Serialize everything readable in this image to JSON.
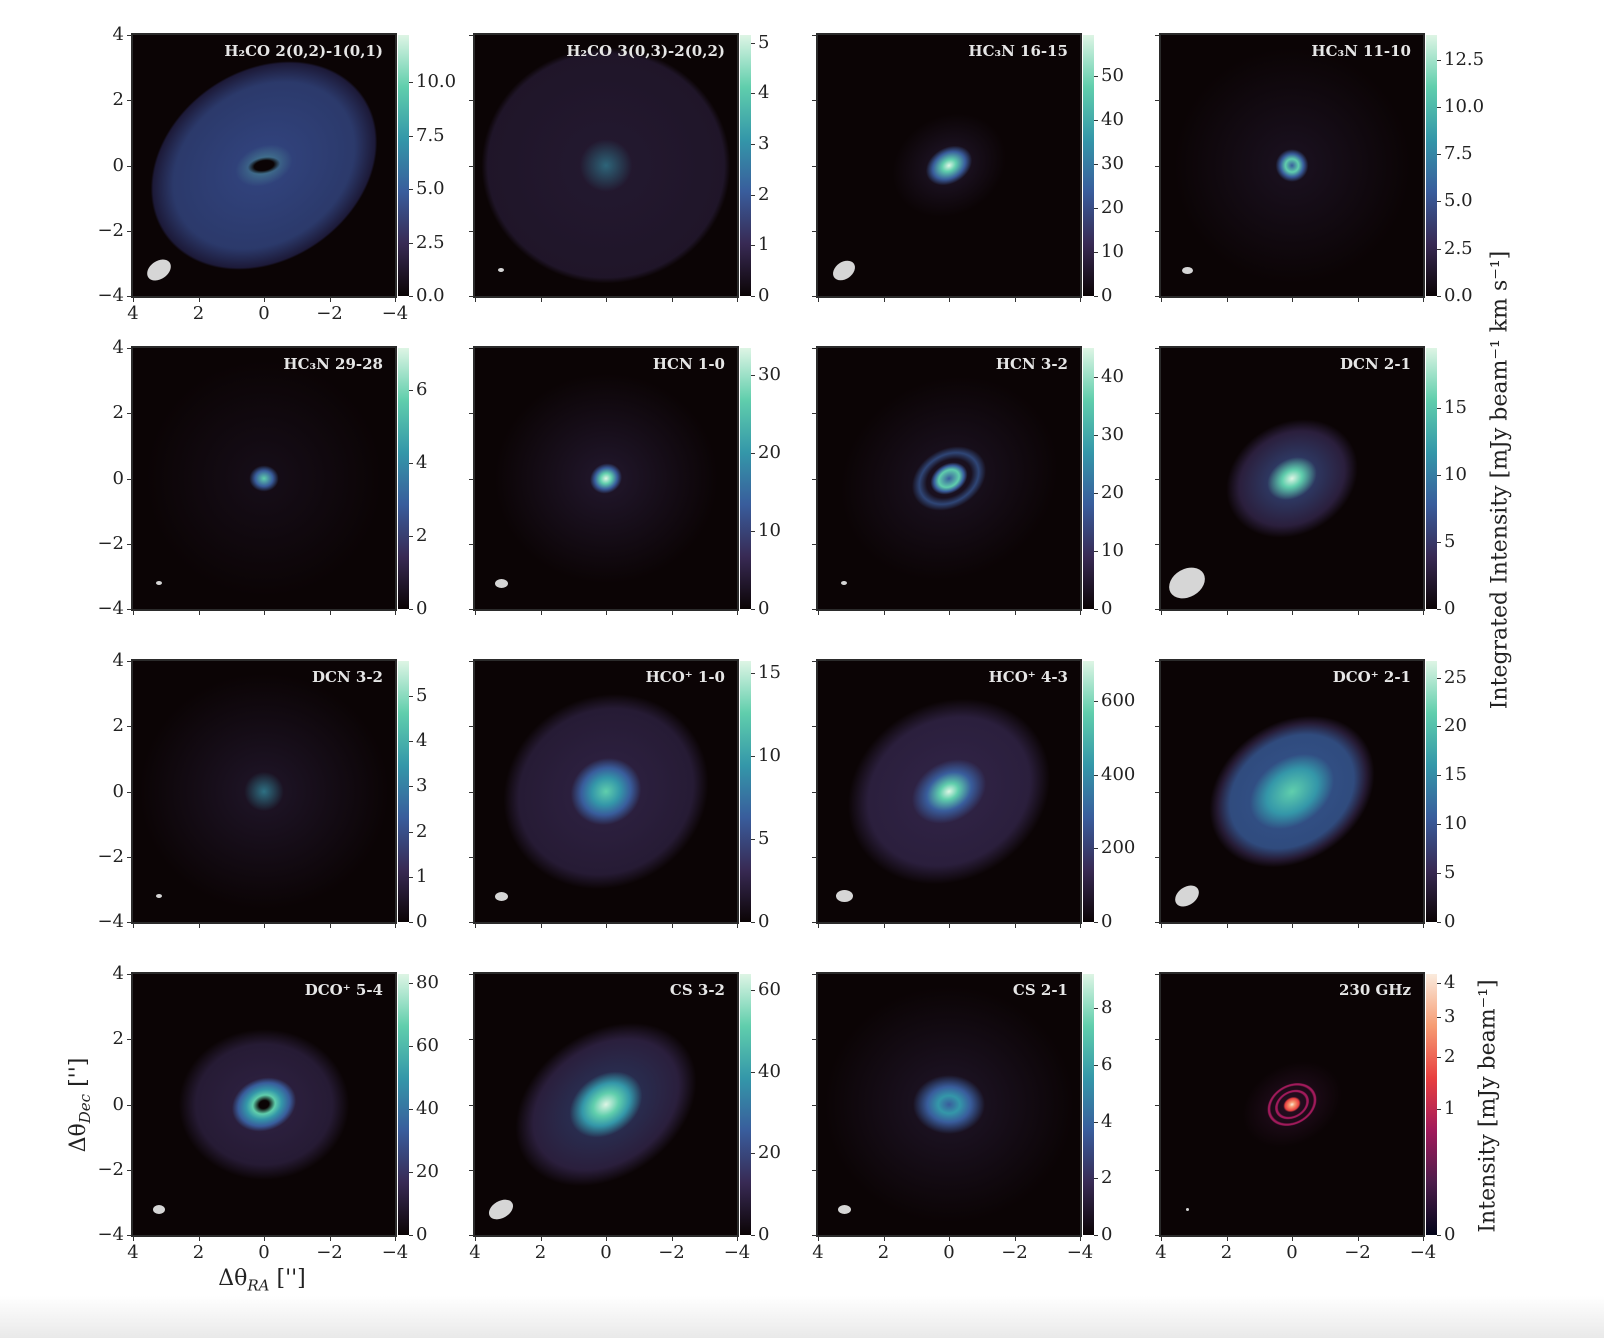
{
  "figure": {
    "xlabel": "Δθ_RA ['']",
    "xlabel_main": "Δθ",
    "xlabel_sub": "RA",
    "xlabel_unit": " ['']",
    "ylabel_main": "Δθ",
    "ylabel_sub": "Dec",
    "ylabel_unit": " ['']",
    "colorbar_label_lines": "Integrated Intensity [mJy beam⁻¹ km s⁻¹]",
    "colorbar_label_continuum": "Intensity [mJy beam⁻¹]",
    "colormap_lines": "mako",
    "colormap_continuum": "rocket",
    "colors": {
      "mako": [
        "#0b0405",
        "#382a54",
        "#395d9c",
        "#3497a9",
        "#60ceac",
        "#def5e5"
      ],
      "rocket": [
        "#03051a",
        "#4c1d4b",
        "#a11a5b",
        "#e83f3f",
        "#f69c73",
        "#faebdd"
      ]
    }
  },
  "chart_data": [
    {
      "type": "heatmap",
      "title": "H₂CO 2(0,2)-1(0,1)",
      "xlim": [
        4,
        -4
      ],
      "ylim": [
        -4,
        4
      ],
      "xticks": [
        "4",
        "2",
        "0",
        "−2",
        "−4"
      ],
      "yticks": [
        "4",
        "2",
        "0",
        "−2",
        "−4"
      ],
      "cbar_range": [
        0,
        12.2
      ],
      "cbar_ticks": [
        0,
        2.5,
        5,
        7.5,
        10
      ],
      "cbar_tick_labels": [
        "0.0",
        "2.5",
        "5.0",
        "7.5",
        "10.0"
      ]
    },
    {
      "type": "heatmap",
      "title": "H₂CO 3(0,3)-2(0,2)",
      "xlim": [
        4,
        -4
      ],
      "ylim": [
        -4,
        4
      ],
      "cbar_range": [
        0,
        5.15
      ],
      "cbar_ticks": [
        0,
        1,
        2,
        3,
        4,
        5
      ],
      "cbar_tick_labels": [
        "0",
        "1",
        "2",
        "3",
        "4",
        "5"
      ]
    },
    {
      "type": "heatmap",
      "title": "HC₃N 16-15",
      "xlim": [
        4,
        -4
      ],
      "ylim": [
        -4,
        4
      ],
      "cbar_range": [
        0,
        59.3
      ],
      "cbar_ticks": [
        0,
        10,
        20,
        30,
        40,
        50
      ],
      "cbar_tick_labels": [
        "0",
        "10",
        "20",
        "30",
        "40",
        "50"
      ]
    },
    {
      "type": "heatmap",
      "title": "HC₃N 11-10",
      "xlim": [
        4,
        -4
      ],
      "ylim": [
        -4,
        4
      ],
      "cbar_range": [
        0,
        13.8
      ],
      "cbar_ticks": [
        0,
        2.5,
        5,
        7.5,
        10,
        12.5
      ],
      "cbar_tick_labels": [
        "0.0",
        "2.5",
        "5.0",
        "7.5",
        "10.0",
        "12.5"
      ]
    },
    {
      "type": "heatmap",
      "title": "HC₃N 29-28",
      "xlim": [
        4,
        -4
      ],
      "ylim": [
        -4,
        4
      ],
      "yticks": [
        "4",
        "2",
        "0",
        "−2",
        "−4"
      ],
      "cbar_range": [
        0,
        7.15
      ],
      "cbar_ticks": [
        0,
        2,
        4,
        6
      ],
      "cbar_tick_labels": [
        "0",
        "2",
        "4",
        "6"
      ]
    },
    {
      "type": "heatmap",
      "title": "HCN 1-0",
      "xlim": [
        4,
        -4
      ],
      "ylim": [
        -4,
        4
      ],
      "cbar_range": [
        0,
        33.5
      ],
      "cbar_ticks": [
        0,
        10,
        20,
        30
      ],
      "cbar_tick_labels": [
        "0",
        "10",
        "20",
        "30"
      ]
    },
    {
      "type": "heatmap",
      "title": "HCN 3-2",
      "xlim": [
        4,
        -4
      ],
      "ylim": [
        -4,
        4
      ],
      "cbar_range": [
        0,
        45
      ],
      "cbar_ticks": [
        0,
        10,
        20,
        30,
        40
      ],
      "cbar_tick_labels": [
        "0",
        "10",
        "20",
        "30",
        "40"
      ]
    },
    {
      "type": "heatmap",
      "title": "DCN 2-1",
      "xlim": [
        4,
        -4
      ],
      "ylim": [
        -4,
        4
      ],
      "cbar_range": [
        0,
        19.5
      ],
      "cbar_ticks": [
        0,
        5,
        10,
        15
      ],
      "cbar_tick_labels": [
        "0",
        "5",
        "10",
        "15"
      ]
    },
    {
      "type": "heatmap",
      "title": "DCN 3-2",
      "xlim": [
        4,
        -4
      ],
      "ylim": [
        -4,
        4
      ],
      "yticks": [
        "4",
        "2",
        "0",
        "−2",
        "−4"
      ],
      "cbar_range": [
        0,
        5.77
      ],
      "cbar_ticks": [
        0,
        1,
        2,
        3,
        4,
        5
      ],
      "cbar_tick_labels": [
        "0",
        "1",
        "2",
        "3",
        "4",
        "5"
      ]
    },
    {
      "type": "heatmap",
      "title": "HCO⁺ 1-0",
      "xlim": [
        4,
        -4
      ],
      "ylim": [
        -4,
        4
      ],
      "cbar_range": [
        0,
        15.7
      ],
      "cbar_ticks": [
        0,
        5,
        10,
        15
      ],
      "cbar_tick_labels": [
        "0",
        "5",
        "10",
        "15"
      ]
    },
    {
      "type": "heatmap",
      "title": "HCO⁺ 4-3",
      "xlim": [
        4,
        -4
      ],
      "ylim": [
        -4,
        4
      ],
      "cbar_range": [
        0,
        708
      ],
      "cbar_ticks": [
        0,
        200,
        400,
        600
      ],
      "cbar_tick_labels": [
        "0",
        "200",
        "400",
        "600"
      ]
    },
    {
      "type": "heatmap",
      "title": "DCO⁺ 2-1",
      "xlim": [
        4,
        -4
      ],
      "ylim": [
        -4,
        4
      ],
      "cbar_range": [
        0,
        26.7
      ],
      "cbar_ticks": [
        0,
        5,
        10,
        15,
        20,
        25
      ],
      "cbar_tick_labels": [
        "0",
        "5",
        "10",
        "15",
        "20",
        "25"
      ]
    },
    {
      "type": "heatmap",
      "title": "DCO⁺ 5-4",
      "xlim": [
        4,
        -4
      ],
      "ylim": [
        -4,
        4
      ],
      "xticks": [
        "4",
        "2",
        "0",
        "−2",
        "−4"
      ],
      "yticks": [
        "4",
        "2",
        "0",
        "−2",
        "−4"
      ],
      "cbar_range": [
        0,
        83
      ],
      "cbar_ticks": [
        0,
        20,
        40,
        60,
        80
      ],
      "cbar_tick_labels": [
        "0",
        "20",
        "40",
        "60",
        "80"
      ]
    },
    {
      "type": "heatmap",
      "title": "CS 3-2",
      "xlim": [
        4,
        -4
      ],
      "ylim": [
        -4,
        4
      ],
      "xticks": [
        "4",
        "2",
        "0",
        "−2",
        "−4"
      ],
      "cbar_range": [
        0,
        64
      ],
      "cbar_ticks": [
        0,
        20,
        40,
        60
      ],
      "cbar_tick_labels": [
        "0",
        "20",
        "40",
        "60"
      ]
    },
    {
      "type": "heatmap",
      "title": "CS 2-1",
      "xlim": [
        4,
        -4
      ],
      "ylim": [
        -4,
        4
      ],
      "xticks": [
        "4",
        "2",
        "0",
        "−2",
        "−4"
      ],
      "cbar_range": [
        0,
        9.2
      ],
      "cbar_ticks": [
        0,
        2,
        4,
        6,
        8
      ],
      "cbar_tick_labels": [
        "0",
        "2",
        "4",
        "6",
        "8"
      ]
    },
    {
      "type": "heatmap",
      "title": "230 GHz",
      "xlim": [
        4,
        -4
      ],
      "ylim": [
        -4,
        4
      ],
      "xticks": [
        "4",
        "2",
        "0",
        "−2",
        "−4"
      ],
      "cbar_range": [
        0,
        4.3
      ],
      "cbar_stretch": "sqrt",
      "cbar_ticks": [
        0,
        1,
        2,
        3,
        4
      ],
      "cbar_tick_labels": [
        "0",
        "1",
        "2",
        "3",
        "4"
      ],
      "colormap": "rocket"
    }
  ]
}
